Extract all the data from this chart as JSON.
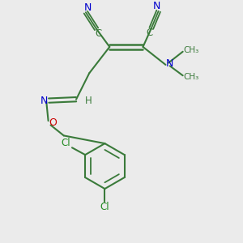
{
  "bg_color": "#ebebeb",
  "bond_color": "#3a7a3a",
  "n_color": "#0000cc",
  "o_color": "#cc0000",
  "cl_color": "#228B22",
  "figsize": [
    3.0,
    3.0
  ],
  "dpi": 100,
  "xlim": [
    0,
    10
  ],
  "ylim": [
    0,
    10
  ]
}
